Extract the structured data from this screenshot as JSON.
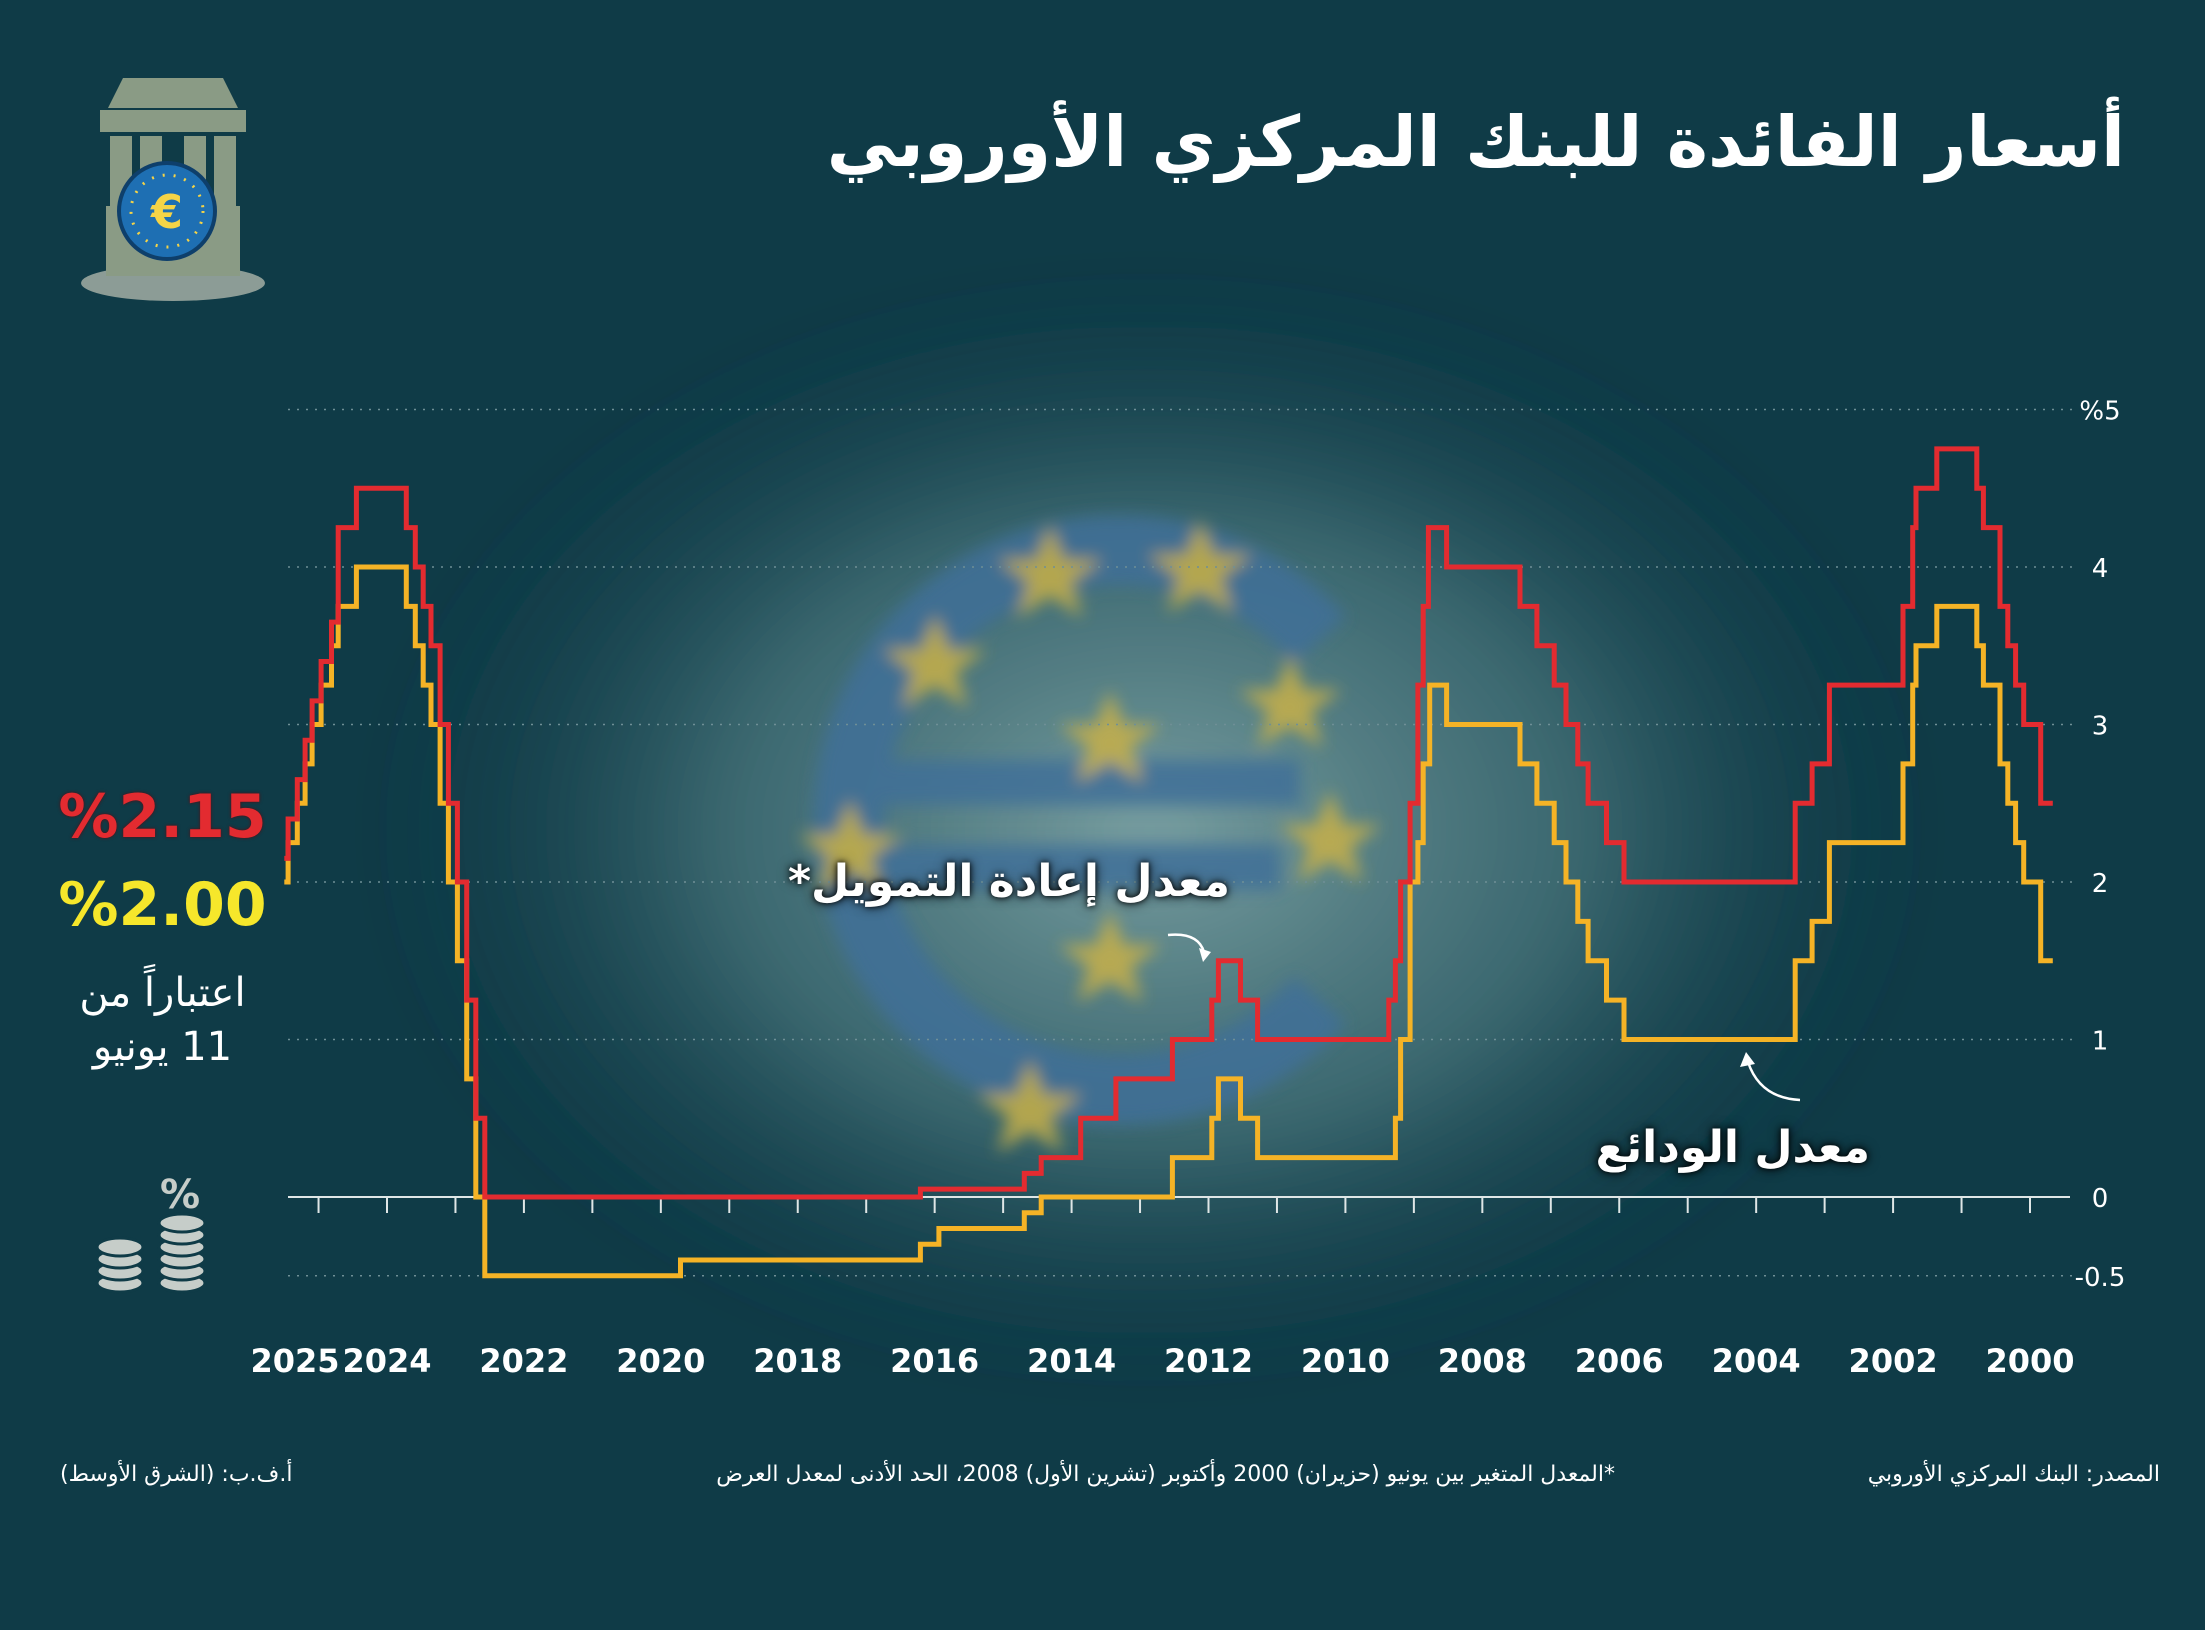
{
  "title": "أسعار الفائدة للبنك المركزي الأوروبي",
  "headline": {
    "refinancing_rate_text": "%2.15",
    "deposit_rate_text": "%2.00",
    "since_line1": "اعتباراً من",
    "since_line2": "11 يونيو"
  },
  "callouts": {
    "refinancing": "معدل إعادة التمويل*",
    "deposit": "معدل الودائع"
  },
  "footer": {
    "source": "المصدر: البنك المركزي الأوروبي",
    "note": "*المعدل المتغير بين يونيو (حزيران) 2000 وأكتوبر (تشرين الأول) 2008، الحد الأدنى لمعدل العرض",
    "credit": "أ.ف.ب: (الشرق الأوسط)"
  },
  "icons": [
    "bank-building-icon",
    "euro-coin-icon",
    "coin-stacks-icon",
    "percent-icon"
  ],
  "colors": {
    "background": "#0f3b47",
    "refinancing": "#e32b30",
    "deposit": "#f5b326",
    "deposit_label": "#f6e72b",
    "grid": "#6f8f96"
  },
  "chart_data": {
    "type": "line",
    "x_reversed": true,
    "ylim": [
      -0.5,
      5
    ],
    "yticks": [
      5,
      4,
      3,
      2,
      1,
      0,
      -0.5
    ],
    "ytick_labels": [
      "%5",
      "4",
      "3",
      "2",
      "1",
      "0",
      "-0.5"
    ],
    "xticks": [
      2000,
      2002,
      2004,
      2006,
      2008,
      2010,
      2012,
      2014,
      2016,
      2018,
      2020,
      2022,
      2024,
      2025
    ],
    "xtick_labels": [
      "2000",
      "2002",
      "2004",
      "2006",
      "2008",
      "2010",
      "2012",
      "2014",
      "2016",
      "2018",
      "2020",
      "2022",
      "2024",
      "2025"
    ],
    "series": [
      {
        "name": "معدل إعادة التمويل*",
        "color": "#e32b30",
        "step": true,
        "points": [
          [
            "1999-09-01",
            2.5
          ],
          [
            "1999-11-05",
            3.0
          ],
          [
            "2000-02-04",
            3.25
          ],
          [
            "2000-03-17",
            3.5
          ],
          [
            "2000-04-28",
            3.75
          ],
          [
            "2000-06-09",
            4.25
          ],
          [
            "2000-06-28",
            4.25
          ],
          [
            "2000-09-06",
            4.5
          ],
          [
            "2000-10-11",
            4.75
          ],
          [
            "2001-05-11",
            4.5
          ],
          [
            "2001-08-31",
            4.25
          ],
          [
            "2001-09-18",
            3.75
          ],
          [
            "2001-11-09",
            3.25
          ],
          [
            "2002-12-06",
            2.75
          ],
          [
            "2003-03-07",
            2.5
          ],
          [
            "2003-06-06",
            2.0
          ],
          [
            "2005-12-06",
            2.25
          ],
          [
            "2006-03-08",
            2.5
          ],
          [
            "2006-06-15",
            2.75
          ],
          [
            "2006-08-09",
            3.0
          ],
          [
            "2006-10-11",
            3.25
          ],
          [
            "2006-12-13",
            3.5
          ],
          [
            "2007-03-14",
            3.75
          ],
          [
            "2007-06-13",
            4.0
          ],
          [
            "2008-07-09",
            4.25
          ],
          [
            "2008-10-15",
            3.75
          ],
          [
            "2008-11-12",
            3.25
          ],
          [
            "2008-12-10",
            2.5
          ],
          [
            "2009-01-21",
            2.0
          ],
          [
            "2009-03-11",
            1.5
          ],
          [
            "2009-04-08",
            1.25
          ],
          [
            "2009-05-13",
            1.0
          ],
          [
            "2011-04-13",
            1.25
          ],
          [
            "2011-07-13",
            1.5
          ],
          [
            "2011-11-09",
            1.25
          ],
          [
            "2011-12-14",
            1.0
          ],
          [
            "2012-07-11",
            0.75
          ],
          [
            "2013-05-08",
            0.5
          ],
          [
            "2013-11-13",
            0.25
          ],
          [
            "2014-06-11",
            0.15
          ],
          [
            "2014-09-10",
            0.05
          ],
          [
            "2016-03-16",
            0.0
          ],
          [
            "2022-07-27",
            0.5
          ],
          [
            "2022-09-14",
            1.25
          ],
          [
            "2022-11-02",
            2.0
          ],
          [
            "2022-12-21",
            2.5
          ],
          [
            "2023-02-08",
            3.0
          ],
          [
            "2023-03-22",
            3.5
          ],
          [
            "2023-05-10",
            3.75
          ],
          [
            "2023-06-21",
            4.0
          ],
          [
            "2023-08-02",
            4.25
          ],
          [
            "2023-09-20",
            4.5
          ],
          [
            "2024-06-12",
            4.25
          ],
          [
            "2024-09-18",
            3.65
          ],
          [
            "2024-10-23",
            3.4
          ],
          [
            "2024-12-18",
            3.15
          ],
          [
            "2025-02-05",
            2.9
          ],
          [
            "2025-03-12",
            2.65
          ],
          [
            "2025-04-23",
            2.4
          ],
          [
            "2025-06-11",
            2.15
          ],
          [
            "2025-07-01",
            2.15
          ]
        ]
      },
      {
        "name": "معدل الودائع",
        "color": "#f5b326",
        "step": true,
        "points": [
          [
            "1999-09-01",
            1.5
          ],
          [
            "1999-11-05",
            2.0
          ],
          [
            "2000-02-04",
            2.25
          ],
          [
            "2000-03-17",
            2.5
          ],
          [
            "2000-04-28",
            2.75
          ],
          [
            "2000-06-09",
            3.25
          ],
          [
            "2000-09-06",
            3.5
          ],
          [
            "2000-10-11",
            3.75
          ],
          [
            "2001-05-11",
            3.5
          ],
          [
            "2001-08-31",
            3.25
          ],
          [
            "2001-09-18",
            2.75
          ],
          [
            "2001-11-09",
            2.25
          ],
          [
            "2002-12-06",
            1.75
          ],
          [
            "2003-03-07",
            1.5
          ],
          [
            "2003-06-06",
            1.0
          ],
          [
            "2005-12-06",
            1.25
          ],
          [
            "2006-03-08",
            1.5
          ],
          [
            "2006-06-15",
            1.75
          ],
          [
            "2006-08-09",
            2.0
          ],
          [
            "2006-10-11",
            2.25
          ],
          [
            "2006-12-13",
            2.5
          ],
          [
            "2007-03-14",
            2.75
          ],
          [
            "2007-06-13",
            3.0
          ],
          [
            "2008-07-09",
            3.25
          ],
          [
            "2008-10-08",
            2.75
          ],
          [
            "2008-11-12",
            2.25
          ],
          [
            "2008-12-10",
            2.0
          ],
          [
            "2009-01-21",
            1.0
          ],
          [
            "2009-03-11",
            0.5
          ],
          [
            "2009-04-08",
            0.25
          ],
          [
            "2011-04-13",
            0.5
          ],
          [
            "2011-07-13",
            0.75
          ],
          [
            "2011-11-09",
            0.5
          ],
          [
            "2011-12-14",
            0.25
          ],
          [
            "2012-07-11",
            0.0
          ],
          [
            "2014-06-11",
            -0.1
          ],
          [
            "2014-09-10",
            -0.2
          ],
          [
            "2015-12-09",
            -0.3
          ],
          [
            "2016-03-16",
            -0.4
          ],
          [
            "2019-09-18",
            -0.5
          ],
          [
            "2022-07-27",
            0.0
          ],
          [
            "2022-09-14",
            0.75
          ],
          [
            "2022-11-02",
            1.5
          ],
          [
            "2022-12-21",
            2.0
          ],
          [
            "2023-02-08",
            2.5
          ],
          [
            "2023-03-22",
            3.0
          ],
          [
            "2023-05-10",
            3.25
          ],
          [
            "2023-06-21",
            3.5
          ],
          [
            "2023-08-02",
            3.75
          ],
          [
            "2023-09-20",
            4.0
          ],
          [
            "2024-06-12",
            3.75
          ],
          [
            "2024-09-18",
            3.5
          ],
          [
            "2024-10-23",
            3.25
          ],
          [
            "2024-12-18",
            3.0
          ],
          [
            "2025-02-05",
            2.75
          ],
          [
            "2025-03-12",
            2.5
          ],
          [
            "2025-04-23",
            2.25
          ],
          [
            "2025-06-11",
            2.0
          ],
          [
            "2025-07-01",
            2.0
          ]
        ]
      }
    ]
  }
}
